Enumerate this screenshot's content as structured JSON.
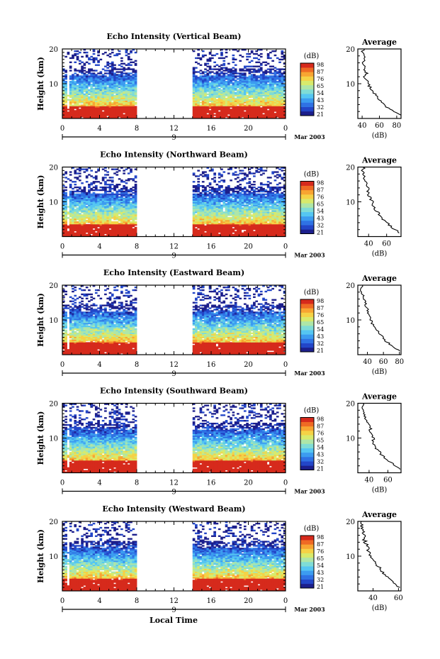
{
  "figure": {
    "xaxis_label": "Local Time",
    "date_label": "Mar 2003",
    "day_label": "9",
    "colorbar_unit": "(dB)",
    "average_title": "Average",
    "average_unit": "(dB)",
    "colors": {
      "colormap": [
        "#1c1f8c",
        "#2346c8",
        "#2f72e4",
        "#3c9cf0",
        "#55c6f2",
        "#7fdcd6",
        "#aee6a8",
        "#d8ea6c",
        "#f5d246",
        "#f8a532",
        "#ef6a24",
        "#d62a1c"
      ]
    }
  },
  "chart_data": [
    {
      "type": "heatmap",
      "title": "Echo Intensity (Vertical Beam)",
      "ylabel": "Height (km)",
      "xlim": [
        0,
        24
      ],
      "xticks": [
        "0",
        "4",
        "8",
        "12",
        "16",
        "20",
        "0"
      ],
      "ylim": [
        0,
        20
      ],
      "yticks": [
        "10",
        "20"
      ],
      "gap_hours": [
        8,
        14
      ],
      "colorbar": {
        "label": "(dB)",
        "ticks": [
          "98",
          "87",
          "76",
          "65",
          "54",
          "43",
          "32",
          "21"
        ]
      },
      "profile": {
        "type": "line",
        "title": "Average",
        "xlabel": "(dB)",
        "xticks": [
          "40",
          "60",
          "80"
        ],
        "xlim": [
          35,
          85
        ],
        "ylim": [
          0,
          20
        ],
        "yticks": [
          "10",
          "20"
        ],
        "height_km": [
          1,
          2,
          3,
          4,
          5,
          6,
          7,
          8,
          9,
          10,
          11,
          12,
          13,
          14,
          15,
          16,
          17,
          18,
          19,
          20
        ],
        "db": [
          84,
          76,
          70,
          65,
          61,
          58,
          55,
          52,
          49,
          47,
          46,
          43,
          45,
          42,
          44,
          41,
          43,
          42,
          40,
          42
        ]
      }
    },
    {
      "type": "heatmap",
      "title": "Echo Intensity (Northward Beam)",
      "ylabel": "Height (km)",
      "xlim": [
        0,
        24
      ],
      "xticks": [
        "0",
        "4",
        "8",
        "12",
        "16",
        "20",
        "0"
      ],
      "ylim": [
        0,
        20
      ],
      "yticks": [
        "10",
        "20"
      ],
      "gap_hours": [
        8,
        14
      ],
      "colorbar": {
        "label": "(dB)",
        "ticks": [
          "98",
          "87",
          "76",
          "65",
          "54",
          "43",
          "32",
          "21"
        ]
      },
      "profile": {
        "type": "line",
        "title": "Average",
        "xlabel": "(dB)",
        "xticks": [
          "40",
          "60"
        ],
        "xlim": [
          28,
          76
        ],
        "ylim": [
          0,
          20
        ],
        "yticks": [
          "10",
          "20"
        ],
        "height_km": [
          1,
          2,
          3,
          4,
          5,
          6,
          7,
          8,
          9,
          10,
          11,
          12,
          13,
          14,
          15,
          16,
          17,
          18,
          19,
          20
        ],
        "db": [
          74,
          70,
          64,
          60,
          56,
          53,
          50,
          47,
          45,
          44,
          42,
          40,
          39,
          40,
          38,
          36,
          35,
          34,
          33,
          35
        ]
      }
    },
    {
      "type": "heatmap",
      "title": "Echo Intensity (Eastward Beam)",
      "ylabel": "Height (km)",
      "xlim": [
        0,
        24
      ],
      "xticks": [
        "0",
        "4",
        "8",
        "12",
        "16",
        "20",
        "0"
      ],
      "ylim": [
        0,
        20
      ],
      "yticks": [
        "10",
        "20"
      ],
      "gap_hours": [
        8,
        14
      ],
      "colorbar": {
        "label": "(dB)",
        "ticks": [
          "98",
          "87",
          "76",
          "65",
          "54",
          "43",
          "32",
          "21"
        ]
      },
      "profile": {
        "type": "line",
        "title": "Average",
        "xlabel": "(dB)",
        "xticks": [
          "40",
          "60",
          "80"
        ],
        "xlim": [
          28,
          82
        ],
        "ylim": [
          0,
          20
        ],
        "yticks": [
          "10",
          "20"
        ],
        "height_km": [
          1,
          2,
          3,
          4,
          5,
          6,
          7,
          8,
          9,
          10,
          11,
          12,
          13,
          14,
          15,
          16,
          17,
          18,
          19,
          20
        ],
        "db": [
          80,
          74,
          68,
          63,
          59,
          55,
          52,
          49,
          46,
          44,
          43,
          41,
          40,
          38,
          37,
          36,
          35,
          33,
          32,
          34
        ]
      }
    },
    {
      "type": "heatmap",
      "title": "Echo Intensity (Southward Beam)",
      "ylabel": "Height (km)",
      "xlim": [
        0,
        24
      ],
      "xticks": [
        "0",
        "4",
        "8",
        "12",
        "16",
        "20",
        "0"
      ],
      "ylim": [
        0,
        20
      ],
      "yticks": [
        "10",
        "20"
      ],
      "gap_hours": [
        8,
        14
      ],
      "colorbar": {
        "label": "(dB)",
        "ticks": [
          "98",
          "87",
          "76",
          "65",
          "54",
          "43",
          "32",
          "21"
        ]
      },
      "profile": {
        "type": "line",
        "title": "Average",
        "xlabel": "(dB)",
        "xticks": [
          "40",
          "60"
        ],
        "xlim": [
          28,
          74
        ],
        "ylim": [
          0,
          20
        ],
        "yticks": [
          "10",
          "20"
        ],
        "height_km": [
          1,
          2,
          3,
          4,
          5,
          6,
          7,
          8,
          9,
          10,
          11,
          12,
          13,
          14,
          15,
          16,
          17,
          18,
          19,
          20
        ],
        "db": [
          72,
          68,
          63,
          58,
          54,
          51,
          48,
          46,
          44,
          45,
          43,
          41,
          42,
          39,
          38,
          36,
          35,
          34,
          33,
          35
        ]
      }
    },
    {
      "type": "heatmap",
      "title": "Echo Intensity (Westward Beam)",
      "ylabel": "Height (km)",
      "xlim": [
        0,
        24
      ],
      "xticks": [
        "0",
        "4",
        "8",
        "12",
        "16",
        "20",
        "0"
      ],
      "ylim": [
        0,
        20
      ],
      "yticks": [
        "10",
        "20"
      ],
      "gap_hours": [
        8,
        14
      ],
      "colorbar": {
        "label": "(dB)",
        "ticks": [
          "98",
          "87",
          "76",
          "65",
          "54",
          "43",
          "32",
          "21"
        ]
      },
      "profile": {
        "type": "line",
        "title": "Average",
        "xlabel": "(dB)",
        "xticks": [
          "40",
          "60"
        ],
        "xlim": [
          28,
          62
        ],
        "ylim": [
          0,
          20
        ],
        "yticks": [
          "10",
          "20"
        ],
        "height_km": [
          1,
          2,
          3,
          4,
          5,
          6,
          7,
          8,
          9,
          10,
          11,
          12,
          13,
          14,
          15,
          16,
          17,
          18,
          19,
          20
        ],
        "db": [
          60,
          58,
          55,
          52,
          49,
          46,
          44,
          42,
          40,
          38,
          37,
          36,
          35,
          34,
          33,
          33,
          32,
          31,
          32,
          31
        ]
      }
    }
  ]
}
